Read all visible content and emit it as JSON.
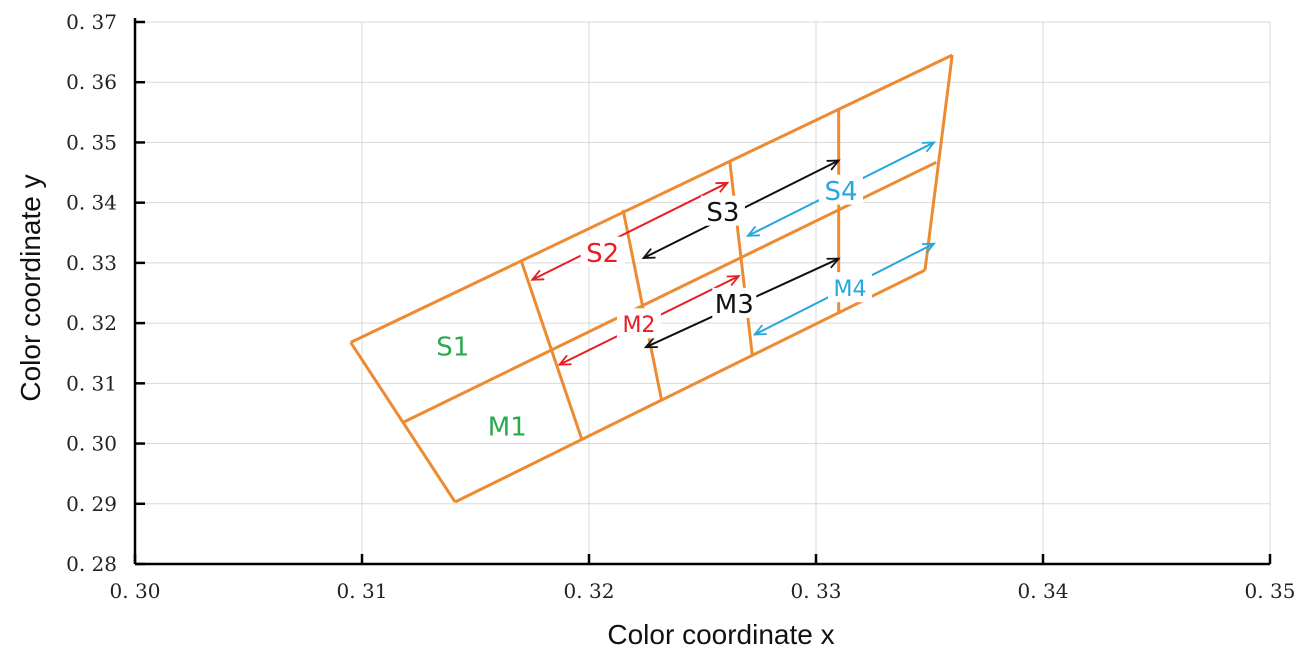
{
  "chart_data": {
    "type": "diagram-scatter",
    "title": "",
    "xlabel": "Color coordinate x",
    "ylabel": "Color coordinate y",
    "xlim": [
      0.3,
      0.35
    ],
    "ylim": [
      0.28,
      0.37
    ],
    "x_ticks": [
      "0. 30",
      "0. 31",
      "0. 32",
      "0. 33",
      "0. 34",
      "0. 35"
    ],
    "y_ticks": [
      "0. 28",
      "0. 29",
      "0. 30",
      "0. 31",
      "0. 32",
      "0. 33",
      "0. 34",
      "0. 35",
      "0. 36",
      "0. 37"
    ],
    "grid": true,
    "line_color": "#ED8B33",
    "grid_lines": [
      {
        "name": "outer-top",
        "points": [
          [
            0.3095,
            0.3168
          ],
          [
            0.336,
            0.3645
          ]
        ]
      },
      {
        "name": "middle",
        "points": [
          [
            0.3118,
            0.3035
          ],
          [
            0.3353,
            0.3467
          ]
        ]
      },
      {
        "name": "outer-bottom",
        "points": [
          [
            0.3141,
            0.2903
          ],
          [
            0.3348,
            0.3288
          ]
        ]
      },
      {
        "name": "left-edge",
        "points": [
          [
            0.3095,
            0.3168
          ],
          [
            0.3141,
            0.2903
          ]
        ]
      },
      {
        "name": "divider-1",
        "points": [
          [
            0.317,
            0.3305
          ],
          [
            0.3197,
            0.3005
          ]
        ]
      },
      {
        "name": "divider-2",
        "points": [
          [
            0.3215,
            0.3388
          ],
          [
            0.3232,
            0.3072
          ]
        ]
      },
      {
        "name": "divider-3",
        "points": [
          [
            0.3262,
            0.347
          ],
          [
            0.3272,
            0.3145
          ]
        ]
      },
      {
        "name": "divider-4",
        "points": [
          [
            0.331,
            0.3555
          ],
          [
            0.331,
            0.3215
          ]
        ]
      },
      {
        "name": "right-edge",
        "points": [
          [
            0.336,
            0.3645
          ],
          [
            0.3348,
            0.3288
          ]
        ]
      }
    ],
    "regions": [
      {
        "label": "S1",
        "x": 0.314,
        "y": 0.3162,
        "color": "#2BAA4D"
      },
      {
        "label": "M1",
        "x": 0.3164,
        "y": 0.3029,
        "color": "#2BAA4D"
      },
      {
        "label": "S2",
        "x": 0.3206,
        "y": 0.3317,
        "color": "#E81E25"
      },
      {
        "label": "M2",
        "x": 0.3222,
        "y": 0.3198,
        "color": "#E81E25"
      },
      {
        "label": "S3",
        "x": 0.3259,
        "y": 0.3385,
        "color": "#111111"
      },
      {
        "label": "M3",
        "x": 0.3264,
        "y": 0.3232,
        "color": "#111111"
      },
      {
        "label": "S4",
        "x": 0.3311,
        "y": 0.342,
        "color": "#27A7DC"
      },
      {
        "label": "M4",
        "x": 0.3315,
        "y": 0.3258,
        "color": "#27A7DC"
      }
    ],
    "arrows": [
      {
        "color": "#E81E25",
        "from": [
          0.3175,
          0.3272
        ],
        "to": [
          0.3261,
          0.3433
        ]
      },
      {
        "color": "#E81E25",
        "from": [
          0.3187,
          0.3131
        ],
        "to": [
          0.3266,
          0.3278
        ]
      },
      {
        "color": "#111111",
        "from": [
          0.3224,
          0.3308
        ],
        "to": [
          0.331,
          0.347
        ]
      },
      {
        "color": "#111111",
        "from": [
          0.3225,
          0.316
        ],
        "to": [
          0.331,
          0.3307
        ]
      },
      {
        "color": "#27A7DC",
        "from": [
          0.327,
          0.3345
        ],
        "to": [
          0.3352,
          0.35
        ]
      },
      {
        "color": "#27A7DC",
        "from": [
          0.3273,
          0.3181
        ],
        "to": [
          0.3352,
          0.3332
        ]
      }
    ]
  }
}
